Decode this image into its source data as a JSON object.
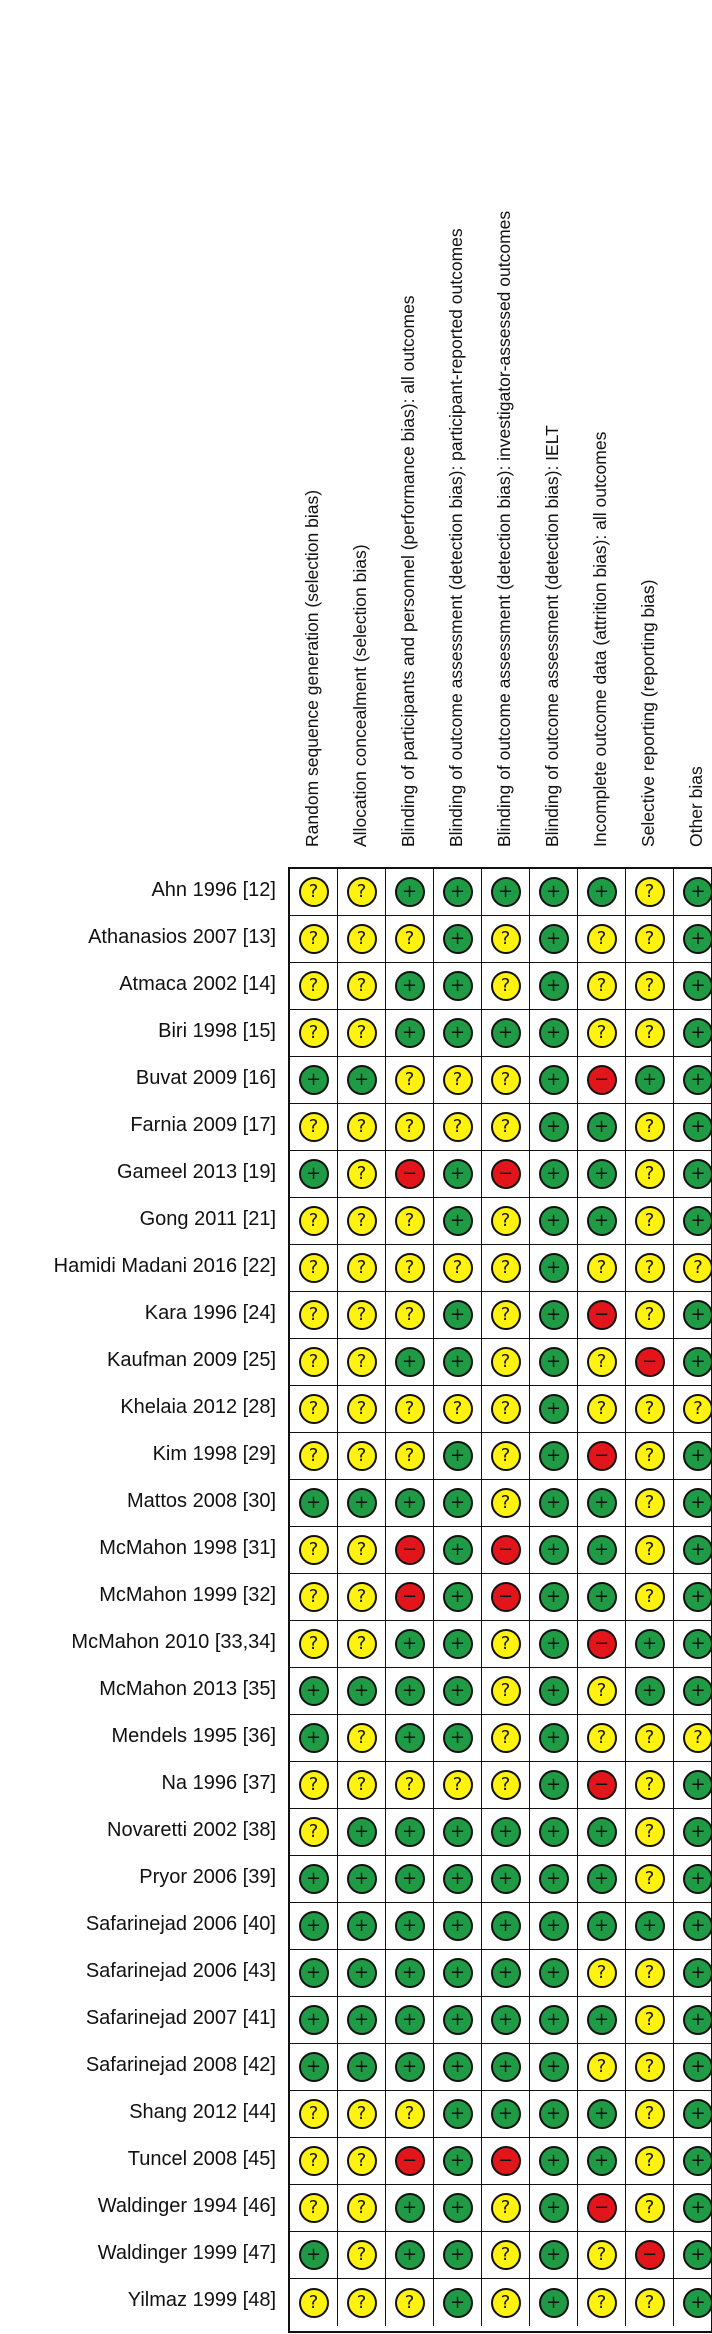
{
  "columns": [
    "Random sequence generation (selection bias)",
    "Allocation concealment (selection bias)",
    "Blinding of participants and personnel (performance bias): all outcomes",
    "Blinding of outcome assessment (detection bias): participant-reported outcomes",
    "Blinding of outcome assessment (detection bias): investigator-assessed outcomes",
    "Blinding of outcome assessment (detection bias): IELT",
    "Incomplete outcome data (attrition bias): all outcomes",
    "Selective reporting (reporting bias)",
    "Other bias"
  ],
  "judgement_symbols": {
    "low": "+",
    "unclear": "?",
    "high": "−"
  },
  "judgement_colors": {
    "low": "#1f9a45",
    "unclear": "#fff20e",
    "high": "#e2161a"
  },
  "studies": [
    {
      "label": "Ahn 1996 [12]",
      "judgements": [
        "unclear",
        "unclear",
        "low",
        "low",
        "low",
        "low",
        "low",
        "unclear",
        "low"
      ]
    },
    {
      "label": "Athanasios 2007 [13]",
      "judgements": [
        "unclear",
        "unclear",
        "unclear",
        "low",
        "unclear",
        "low",
        "unclear",
        "unclear",
        "low"
      ]
    },
    {
      "label": "Atmaca 2002 [14]",
      "judgements": [
        "unclear",
        "unclear",
        "low",
        "low",
        "unclear",
        "low",
        "unclear",
        "unclear",
        "low"
      ]
    },
    {
      "label": "Biri 1998 [15]",
      "judgements": [
        "unclear",
        "unclear",
        "low",
        "low",
        "low",
        "low",
        "unclear",
        "unclear",
        "low"
      ]
    },
    {
      "label": "Buvat 2009 [16]",
      "judgements": [
        "low",
        "low",
        "unclear",
        "unclear",
        "unclear",
        "low",
        "high",
        "low",
        "low"
      ]
    },
    {
      "label": "Farnia 2009 [17]",
      "judgements": [
        "unclear",
        "unclear",
        "unclear",
        "unclear",
        "unclear",
        "low",
        "low",
        "unclear",
        "low"
      ]
    },
    {
      "label": "Gameel 2013 [19]",
      "judgements": [
        "low",
        "unclear",
        "high",
        "low",
        "high",
        "low",
        "low",
        "unclear",
        "low"
      ]
    },
    {
      "label": "Gong 2011 [21]",
      "judgements": [
        "unclear",
        "unclear",
        "unclear",
        "low",
        "unclear",
        "low",
        "low",
        "unclear",
        "low"
      ]
    },
    {
      "label": "Hamidi Madani 2016 [22]",
      "judgements": [
        "unclear",
        "unclear",
        "unclear",
        "unclear",
        "unclear",
        "low",
        "unclear",
        "unclear",
        "unclear"
      ]
    },
    {
      "label": "Kara 1996 [24]",
      "judgements": [
        "unclear",
        "unclear",
        "unclear",
        "low",
        "unclear",
        "low",
        "high",
        "unclear",
        "low"
      ]
    },
    {
      "label": "Kaufman 2009 [25]",
      "judgements": [
        "unclear",
        "unclear",
        "low",
        "low",
        "unclear",
        "low",
        "unclear",
        "high",
        "low"
      ]
    },
    {
      "label": "Khelaia 2012 [28]",
      "judgements": [
        "unclear",
        "unclear",
        "unclear",
        "unclear",
        "unclear",
        "low",
        "unclear",
        "unclear",
        "unclear"
      ]
    },
    {
      "label": "Kim 1998 [29]",
      "judgements": [
        "unclear",
        "unclear",
        "unclear",
        "low",
        "unclear",
        "low",
        "high",
        "unclear",
        "low"
      ]
    },
    {
      "label": "Mattos 2008 [30]",
      "judgements": [
        "low",
        "low",
        "low",
        "low",
        "unclear",
        "low",
        "low",
        "unclear",
        "low"
      ]
    },
    {
      "label": "McMahon 1998 [31]",
      "judgements": [
        "unclear",
        "unclear",
        "high",
        "low",
        "high",
        "low",
        "low",
        "unclear",
        "low"
      ]
    },
    {
      "label": "McMahon 1999 [32]",
      "judgements": [
        "unclear",
        "unclear",
        "high",
        "low",
        "high",
        "low",
        "low",
        "unclear",
        "low"
      ]
    },
    {
      "label": "McMahon 2010 [33,34]",
      "judgements": [
        "unclear",
        "unclear",
        "low",
        "low",
        "unclear",
        "low",
        "high",
        "low",
        "low"
      ]
    },
    {
      "label": "McMahon 2013 [35]",
      "judgements": [
        "low",
        "low",
        "low",
        "low",
        "unclear",
        "low",
        "unclear",
        "low",
        "low"
      ]
    },
    {
      "label": "Mendels 1995 [36]",
      "judgements": [
        "low",
        "unclear",
        "low",
        "low",
        "unclear",
        "low",
        "unclear",
        "unclear",
        "unclear"
      ]
    },
    {
      "label": "Na 1996 [37]",
      "judgements": [
        "unclear",
        "unclear",
        "unclear",
        "unclear",
        "unclear",
        "low",
        "high",
        "unclear",
        "low"
      ]
    },
    {
      "label": "Novaretti 2002 [38]",
      "judgements": [
        "unclear",
        "low",
        "low",
        "low",
        "low",
        "low",
        "low",
        "unclear",
        "low"
      ]
    },
    {
      "label": "Pryor 2006 [39]",
      "judgements": [
        "low",
        "low",
        "low",
        "low",
        "low",
        "low",
        "low",
        "unclear",
        "low"
      ]
    },
    {
      "label": "Safarinejad 2006 [40]",
      "judgements": [
        "low",
        "low",
        "low",
        "low",
        "low",
        "low",
        "low",
        "low",
        "low"
      ]
    },
    {
      "label": "Safarinejad 2006 [43]",
      "judgements": [
        "low",
        "low",
        "low",
        "low",
        "low",
        "low",
        "unclear",
        "unclear",
        "low"
      ]
    },
    {
      "label": "Safarinejad 2007 [41]",
      "judgements": [
        "low",
        "low",
        "low",
        "low",
        "low",
        "low",
        "low",
        "unclear",
        "low"
      ]
    },
    {
      "label": "Safarinejad 2008 [42]",
      "judgements": [
        "low",
        "low",
        "low",
        "low",
        "low",
        "low",
        "unclear",
        "unclear",
        "low"
      ]
    },
    {
      "label": "Shang 2012 [44]",
      "judgements": [
        "unclear",
        "unclear",
        "unclear",
        "low",
        "low",
        "low",
        "low",
        "unclear",
        "low"
      ]
    },
    {
      "label": "Tuncel 2008 [45]",
      "judgements": [
        "unclear",
        "unclear",
        "high",
        "low",
        "high",
        "low",
        "low",
        "unclear",
        "low"
      ]
    },
    {
      "label": "Waldinger 1994 [46]",
      "judgements": [
        "unclear",
        "unclear",
        "low",
        "low",
        "unclear",
        "low",
        "high",
        "unclear",
        "low"
      ]
    },
    {
      "label": "Waldinger 1999 [47]",
      "judgements": [
        "low",
        "unclear",
        "low",
        "low",
        "unclear",
        "low",
        "unclear",
        "high",
        "low"
      ]
    },
    {
      "label": "Yilmaz 1999 [48]",
      "judgements": [
        "unclear",
        "unclear",
        "unclear",
        "low",
        "unclear",
        "low",
        "unclear",
        "unclear",
        "low"
      ]
    }
  ]
}
